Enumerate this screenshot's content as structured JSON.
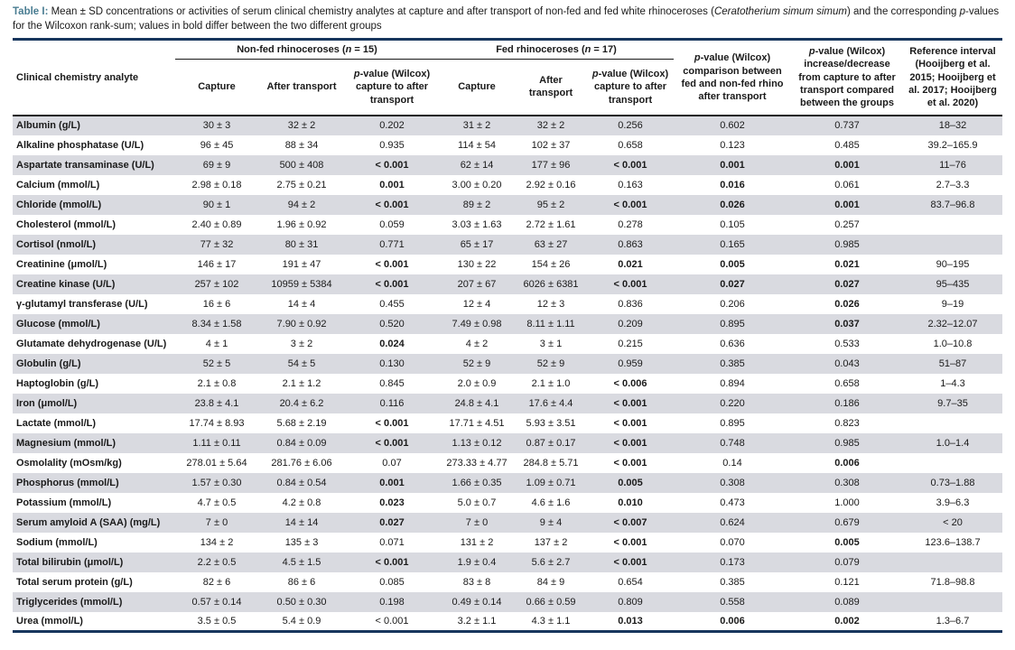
{
  "caption": {
    "label": "Table I:",
    "part1": " Mean ± SD concentrations or activities of serum clinical chemistry analytes at capture and after transport of non-fed and fed white rhinoceroses (",
    "species": "Ceratotherium simum simum",
    "part2": ") and the corresponding ",
    "p": "p",
    "part3": "-values for the Wilcoxon rank-sum; values in bold differ between the two different groups"
  },
  "header": {
    "analyte": "Clinical chemistry analyte",
    "nonfed": {
      "pre": "Non-fed rhinoceroses (",
      "n": "n",
      "post": " = 15)"
    },
    "fed": {
      "pre": "Fed rhinoceroses (",
      "n": "n",
      "post": " = 17)"
    },
    "capture": "Capture",
    "after_transport": "After transport",
    "p": "p",
    "p_capture_rest": "-value (Wilcox) capture to after transport",
    "p_comparison_rest": "-value (Wilcox) comparison between fed and non-fed rhino after transport",
    "p_incdec_rest": "-value (Wilcox) increase/decrease from capture to after transport compared between the groups",
    "reference": "Reference interval (Hooijberg et al. 2015; Hooijberg et al. 2017; Hooijberg et al. 2020)"
  },
  "chart_data": {
    "type": "table",
    "columns": [
      "Clinical chemistry analyte",
      "Non-fed Capture",
      "Non-fed After transport",
      "Non-fed p-value (Wilcox) capture to after transport",
      "Fed Capture",
      "Fed After transport",
      "Fed p-value (Wilcox) capture to after transport",
      "p-value (Wilcox) comparison between fed and non-fed rhino after transport",
      "p-value (Wilcox) increase/decrease from capture to after transport compared between the groups",
      "Reference interval (Hooijberg et al. 2015; Hooijberg et al. 2017; Hooijberg et al. 2020)"
    ],
    "rows": [
      {
        "analyte": "Albumin (g/L)",
        "cells": [
          "30 ± 3",
          "32 ± 2",
          "0.202",
          "31 ± 2",
          "32 ± 2",
          "0.256",
          "0.602",
          "0.737",
          "18–32"
        ],
        "bold": []
      },
      {
        "analyte": "Alkaline phosphatase (U/L)",
        "cells": [
          "96 ± 45",
          "88 ± 34",
          "0.935",
          "114 ± 54",
          "102 ± 37",
          "0.658",
          "0.123",
          "0.485",
          "39.2–165.9"
        ],
        "bold": []
      },
      {
        "analyte": "Aspartate transaminase (U/L)",
        "cells": [
          "69 ± 9",
          "500 ± 408",
          "< 0.001",
          "62 ± 14",
          "177 ± 96",
          "< 0.001",
          "0.001",
          "0.001",
          "11–76"
        ],
        "bold": [
          2,
          5,
          6,
          7
        ]
      },
      {
        "analyte": "Calcium (mmol/L)",
        "cells": [
          "2.98 ± 0.18",
          "2.75 ± 0.21",
          "0.001",
          "3.00 ± 0.20",
          "2.92 ± 0.16",
          "0.163",
          "0.016",
          "0.061",
          "2.7–3.3"
        ],
        "bold": [
          2,
          6
        ]
      },
      {
        "analyte": "Chloride (mmol/L)",
        "cells": [
          "90 ± 1",
          "94 ± 2",
          "< 0.001",
          "89 ± 2",
          "95 ± 2",
          "< 0.001",
          "0.026",
          "0.001",
          "83.7–96.8"
        ],
        "bold": [
          2,
          5,
          6,
          7
        ]
      },
      {
        "analyte": "Cholesterol (mmol/L)",
        "cells": [
          "2.40 ± 0.89",
          "1.96 ± 0.92",
          "0.059",
          "3.03 ± 1.63",
          "2.72 ± 1.61",
          "0.278",
          "0.105",
          "0.257",
          ""
        ],
        "bold": []
      },
      {
        "analyte": "Cortisol (nmol/L)",
        "cells": [
          "77 ± 32",
          "80 ± 31",
          "0.771",
          "65 ± 17",
          "63 ± 27",
          "0.863",
          "0.165",
          "0.985",
          ""
        ],
        "bold": []
      },
      {
        "analyte": "Creatinine (μmol/L)",
        "cells": [
          "146 ± 17",
          "191 ± 47",
          "< 0.001",
          "130 ± 22",
          "154 ± 26",
          "0.021",
          "0.005",
          "0.021",
          "90–195"
        ],
        "bold": [
          2,
          5,
          6,
          7
        ]
      },
      {
        "analyte": "Creatine kinase (U/L)",
        "cells": [
          "257 ± 102",
          "10959 ± 5384",
          "< 0.001",
          "207 ± 67",
          "6026 ± 6381",
          "< 0.001",
          "0.027",
          "0.027",
          "95–435"
        ],
        "bold": [
          2,
          5,
          6,
          7
        ]
      },
      {
        "analyte": "γ-glutamyl transferase (U/L)",
        "cells": [
          "16 ± 6",
          "14 ± 4",
          "0.455",
          "12 ± 4",
          "12 ± 3",
          "0.836",
          "0.206",
          "0.026",
          "9–19"
        ],
        "bold": [
          7
        ]
      },
      {
        "analyte": "Glucose (mmol/L)",
        "cells": [
          "8.34 ± 1.58",
          "7.90 ± 0.92",
          "0.520",
          "7.49 ± 0.98",
          "8.11 ± 1.11",
          "0.209",
          "0.895",
          "0.037",
          "2.32–12.07"
        ],
        "bold": [
          7
        ]
      },
      {
        "analyte": "Glutamate dehydrogenase (U/L)",
        "cells": [
          "4 ± 1",
          "3 ± 2",
          "0.024",
          "4 ± 2",
          "3 ± 1",
          "0.215",
          "0.636",
          "0.533",
          "1.0–10.8"
        ],
        "bold": [
          2
        ]
      },
      {
        "analyte": "Globulin (g/L)",
        "cells": [
          "52 ± 5",
          "54 ± 5",
          "0.130",
          "52 ± 9",
          "52 ± 9",
          "0.959",
          "0.385",
          "0.043",
          "51–87"
        ],
        "bold": []
      },
      {
        "analyte": "Haptoglobin (g/L)",
        "cells": [
          "2.1 ± 0.8",
          "2.1 ± 1.2",
          "0.845",
          "2.0 ± 0.9",
          "2.1 ± 1.0",
          "< 0.006",
          "0.894",
          "0.658",
          "1–4.3"
        ],
        "bold": [
          5
        ]
      },
      {
        "analyte": "Iron (μmol/L)",
        "cells": [
          "23.8 ± 4.1",
          "20.4 ± 6.2",
          "0.116",
          "24.8 ± 4.1",
          "17.6 ± 4.4",
          "< 0.001",
          "0.220",
          "0.186",
          "9.7–35"
        ],
        "bold": [
          5
        ]
      },
      {
        "analyte": "Lactate (mmol/L)",
        "cells": [
          "17.74 ± 8.93",
          "5.68 ± 2.19",
          "< 0.001",
          "17.71 ± 4.51",
          "5.93 ± 3.51",
          "< 0.001",
          "0.895",
          "0.823",
          ""
        ],
        "bold": [
          2,
          5
        ]
      },
      {
        "analyte": "Magnesium (mmol/L)",
        "cells": [
          "1.11 ± 0.11",
          "0.84 ± 0.09",
          "< 0.001",
          "1.13 ± 0.12",
          "0.87 ± 0.17",
          "< 0.001",
          "0.748",
          "0.985",
          "1.0–1.4"
        ],
        "bold": [
          2,
          5
        ]
      },
      {
        "analyte": "Osmolality (mOsm/kg)",
        "cells": [
          "278.01 ± 5.64",
          "281.76 ± 6.06",
          "0.07",
          "273.33 ± 4.77",
          "284.8 ± 5.71",
          "< 0.001",
          "0.14",
          "0.006",
          ""
        ],
        "bold": [
          5,
          7
        ]
      },
      {
        "analyte": "Phosphorus (mmol/L)",
        "cells": [
          "1.57 ± 0.30",
          "0.84 ± 0.54",
          "0.001",
          "1.66 ± 0.35",
          "1.09 ± 0.71",
          "0.005",
          "0.308",
          "0.308",
          "0.73–1.88"
        ],
        "bold": [
          2,
          5
        ]
      },
      {
        "analyte": "Potassium (mmol/L)",
        "cells": [
          "4.7 ± 0.5",
          "4.2 ± 0.8",
          "0.023",
          "5.0 ± 0.7",
          "4.6 ± 1.6",
          "0.010",
          "0.473",
          "1.000",
          "3.9–6.3"
        ],
        "bold": [
          2,
          5
        ]
      },
      {
        "analyte": "Serum amyloid A (SAA) (mg/L)",
        "cells": [
          "7 ± 0",
          "14 ± 14",
          "0.027",
          "7 ± 0",
          "9 ± 4",
          "< 0.007",
          "0.624",
          "0.679",
          "< 20"
        ],
        "bold": [
          2,
          5
        ]
      },
      {
        "analyte": "Sodium (mmol/L)",
        "cells": [
          "134 ± 2",
          "135 ± 3",
          "0.071",
          "131 ± 2",
          "137 ± 2",
          "< 0.001",
          "0.070",
          "0.005",
          "123.6–138.7"
        ],
        "bold": [
          5,
          7
        ]
      },
      {
        "analyte": "Total bilirubin (μmol/L)",
        "cells": [
          "2.2 ± 0.5",
          "4.5 ± 1.5",
          "< 0.001",
          "1.9 ± 0.4",
          "5.6 ± 2.7",
          "< 0.001",
          "0.173",
          "0.079",
          ""
        ],
        "bold": [
          2,
          5
        ]
      },
      {
        "analyte": "Total serum protein (g/L)",
        "cells": [
          "82 ± 6",
          "86 ± 6",
          "0.085",
          "83 ± 8",
          "84 ± 9",
          "0.654",
          "0.385",
          "0.121",
          "71.8–98.8"
        ],
        "bold": []
      },
      {
        "analyte": "Triglycerides (mmol/L)",
        "cells": [
          "0.57 ± 0.14",
          "0.50 ± 0.30",
          "0.198",
          "0.49 ± 0.14",
          "0.66 ± 0.59",
          "0.809",
          "0.558",
          "0.089",
          ""
        ],
        "bold": []
      },
      {
        "analyte": "Urea (mmol/L)",
        "cells": [
          "3.5 ± 0.5",
          "5.4 ± 0.9",
          "< 0.001",
          "3.2 ± 1.1",
          "4.3 ± 1.1",
          "0.013",
          "0.006",
          "0.002",
          "1.3–6.7"
        ],
        "bold": [
          5,
          6,
          7
        ]
      }
    ]
  },
  "colors": {
    "caption_label": "#4a7d92",
    "rule_navy": "#17365d",
    "row_shade": "#d9dae0",
    "text": "#1a1a1a"
  }
}
